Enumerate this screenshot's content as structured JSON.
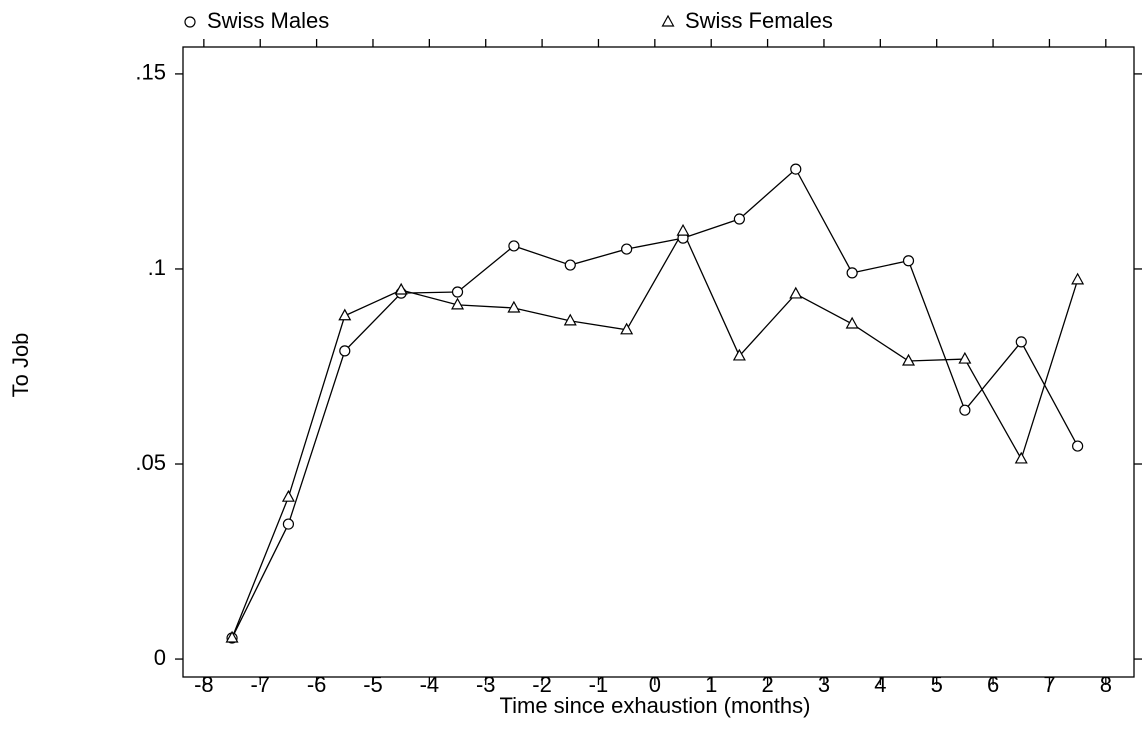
{
  "chart_data": {
    "type": "line",
    "xlabel": "Time since exhaustion (months)",
    "ylabel": "To Job",
    "x": [
      -7.5,
      -6.5,
      -5.5,
      -4.5,
      -3.5,
      -2.5,
      -1.5,
      -0.5,
      0.5,
      1.5,
      2.5,
      3.5,
      4.5,
      5.5,
      6.5,
      7.5
    ],
    "series": [
      {
        "name": "Swiss Males",
        "color": "#000000",
        "marker": "circle",
        "values": [
          0.0054,
          0.0346,
          0.079,
          0.0938,
          0.0941,
          0.1059,
          0.101,
          0.1051,
          0.1079,
          0.1128,
          0.1256,
          0.099,
          0.1021,
          0.0638,
          0.0813,
          0.0546
        ]
      },
      {
        "name": "Swiss Females",
        "color": "#000000",
        "marker": "triangle",
        "values": [
          0.0054,
          0.0415,
          0.088,
          0.0946,
          0.0908,
          0.09,
          0.0867,
          0.0844,
          0.1097,
          0.0777,
          0.0936,
          0.0859,
          0.0764,
          0.0769,
          0.0513,
          0.0972
        ]
      }
    ],
    "xlim": [
      -8.37,
      8.5
    ],
    "ylim": [
      -0.0046,
      0.1569
    ],
    "xticks": [
      -8,
      -7,
      -6,
      -5,
      -4,
      -3,
      -2,
      -1,
      0,
      1,
      2,
      3,
      4,
      5,
      6,
      7,
      8
    ],
    "yticks": [
      0,
      {
        "value": 0.05,
        "label": ".05"
      },
      {
        "value": 0.1,
        "label": ".1"
      },
      {
        "value": 0.15,
        "label": ".15"
      }
    ],
    "grid": false,
    "legend": "top"
  }
}
